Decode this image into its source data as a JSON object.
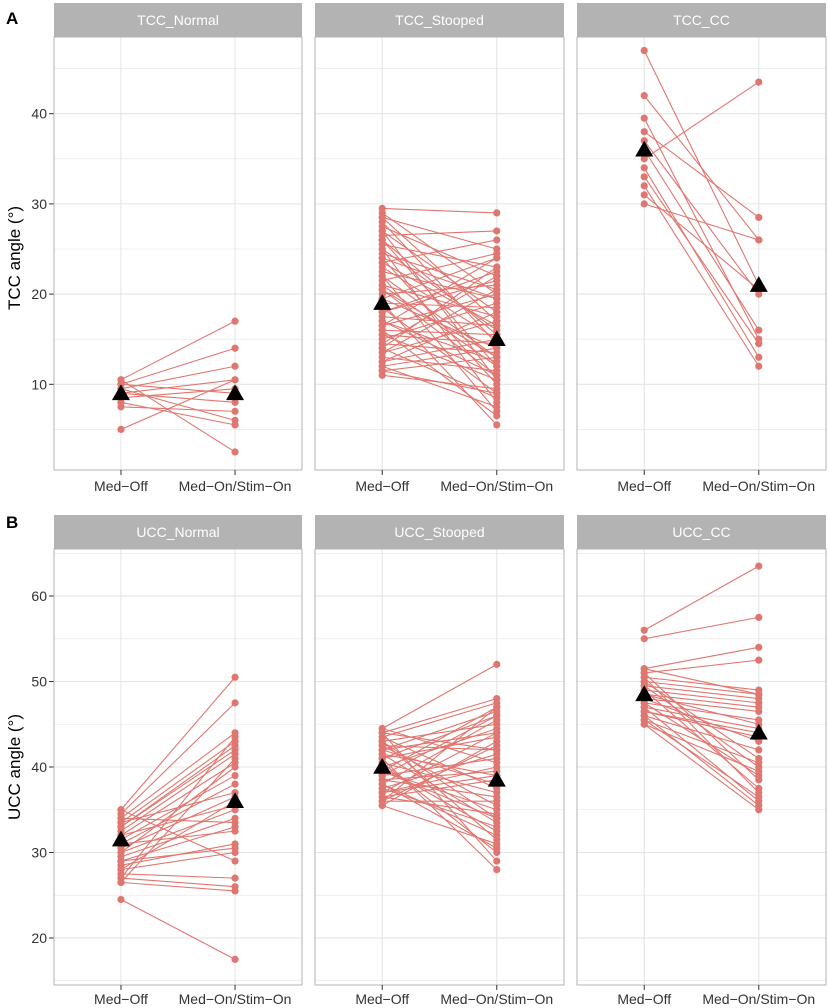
{
  "colors": {
    "series": "#E07670",
    "mean_marker": "#000000",
    "strip": "#B3B3B3",
    "grid": "#E5E5E5",
    "panel_border": "#B3B3B3"
  },
  "chart_data": [
    {
      "type": "line",
      "tag": "A",
      "ylabel": "TCC angle (°)",
      "ylim": [
        0.5,
        48.5
      ],
      "yticks": [
        10,
        20,
        30,
        40
      ],
      "categories": [
        "Med−Off",
        "Med−On/Stim−On"
      ],
      "mean_marker": "triangle",
      "panels": [
        {
          "strip": "TCC_Normal",
          "pairs": [
            [
              10.5,
              17
            ],
            [
              10,
              14
            ],
            [
              9.5,
              12
            ],
            [
              9,
              10.5
            ],
            [
              10,
              9
            ],
            [
              8.5,
              9.5
            ],
            [
              9,
              8
            ],
            [
              7.5,
              7
            ],
            [
              9.5,
              6
            ],
            [
              8,
              5.5
            ],
            [
              5,
              10.5
            ],
            [
              10.5,
              2.5
            ]
          ],
          "means": [
            9,
            9
          ]
        },
        {
          "strip": "TCC_Stooped",
          "pairs": [
            [
              29.5,
              29
            ],
            [
              29,
              20
            ],
            [
              28.5,
              25
            ],
            [
              28,
              14.5
            ],
            [
              27.5,
              22
            ],
            [
              27,
              18
            ],
            [
              26.5,
              27
            ],
            [
              26,
              12
            ],
            [
              25.5,
              23
            ],
            [
              25,
              16
            ],
            [
              24.5,
              20.5
            ],
            [
              24,
              10
            ],
            [
              23.5,
              26
            ],
            [
              23,
              15
            ],
            [
              22.5,
              19.5
            ],
            [
              22,
              13
            ],
            [
              21.5,
              24.5
            ],
            [
              21,
              17.5
            ],
            [
              20.5,
              11
            ],
            [
              20,
              21
            ],
            [
              19.5,
              14
            ],
            [
              19,
              18.5
            ],
            [
              18.5,
              9
            ],
            [
              18,
              22.5
            ],
            [
              17.5,
              16.5
            ],
            [
              17,
              12.5
            ],
            [
              16.5,
              20
            ],
            [
              16,
              15.5
            ],
            [
              15.5,
              10.5
            ],
            [
              15,
              19
            ],
            [
              14.5,
              13.5
            ],
            [
              14,
              8.5
            ],
            [
              13.5,
              17
            ],
            [
              13,
              11.5
            ],
            [
              12.5,
              15
            ],
            [
              12,
              7.5
            ],
            [
              11.5,
              13
            ],
            [
              11,
              9.5
            ],
            [
              22,
              7
            ],
            [
              19,
              5.5
            ],
            [
              16.5,
              24
            ],
            [
              14,
              23
            ],
            [
              25,
              8
            ],
            [
              20.5,
              13
            ],
            [
              18,
              21.5
            ],
            [
              15.5,
              14.5
            ],
            [
              12.5,
              18
            ],
            [
              27,
              10.5
            ],
            [
              23.5,
              16.5
            ],
            [
              17,
              11
            ],
            [
              13.5,
              20.5
            ],
            [
              11.5,
              9
            ],
            [
              21,
              12
            ],
            [
              26,
              15.5
            ],
            [
              24,
              19.5
            ],
            [
              19.5,
              24
            ],
            [
              14.5,
              22
            ],
            [
              16,
              6.5
            ],
            [
              28.5,
              17
            ],
            [
              12,
              14
            ]
          ],
          "means": [
            19,
            15
          ]
        },
        {
          "strip": "TCC_CC",
          "pairs": [
            [
              47,
              21
            ],
            [
              42,
              26
            ],
            [
              39.5,
              15
            ],
            [
              38,
              28.5
            ],
            [
              37,
              20
            ],
            [
              36,
              16
            ],
            [
              35,
              43.5
            ],
            [
              34,
              13
            ],
            [
              33,
              14.5
            ],
            [
              32,
              12
            ],
            [
              31,
              20.5
            ],
            [
              30,
              26
            ]
          ],
          "means": [
            36,
            21
          ]
        }
      ]
    },
    {
      "type": "line",
      "tag": "B",
      "ylabel": "UCC angle (°)",
      "ylim": [
        14.5,
        65.5
      ],
      "yticks": [
        20,
        30,
        40,
        50,
        60
      ],
      "categories": [
        "Med−Off",
        "Med−On/Stim−On"
      ],
      "mean_marker": "triangle",
      "panels": [
        {
          "strip": "UCC_Normal",
          "pairs": [
            [
              35,
              50.5
            ],
            [
              34.5,
              47.5
            ],
            [
              34,
              44
            ],
            [
              33.5,
              43
            ],
            [
              33,
              42.5
            ],
            [
              32.5,
              41.5
            ],
            [
              32,
              40.5
            ],
            [
              31.5,
              39
            ],
            [
              31,
              38
            ],
            [
              30.5,
              36.5
            ],
            [
              30,
              35
            ],
            [
              29.5,
              34
            ],
            [
              29,
              33
            ],
            [
              28.5,
              31
            ],
            [
              28,
              30
            ],
            [
              27.5,
              27
            ],
            [
              27,
              26
            ],
            [
              26.5,
              25.5
            ],
            [
              24.5,
              17.5
            ],
            [
              33,
              42
            ],
            [
              30,
              40
            ],
            [
              28,
              36
            ],
            [
              32,
              35.5
            ],
            [
              34,
              33.5
            ],
            [
              31,
              32.5
            ],
            [
              29,
              30.5
            ],
            [
              35,
              29
            ],
            [
              27,
              43.5
            ],
            [
              26.5,
              41
            ],
            [
              33.5,
              37
            ]
          ],
          "means": [
            31.5,
            36
          ]
        },
        {
          "strip": "UCC_Stooped",
          "pairs": [
            [
              44.5,
              52
            ],
            [
              44,
              48
            ],
            [
              43.5,
              47.5
            ],
            [
              43,
              45
            ],
            [
              42.5,
              42
            ],
            [
              42,
              46.5
            ],
            [
              41.5,
              39
            ],
            [
              41,
              43.5
            ],
            [
              40.5,
              37
            ],
            [
              40,
              44.5
            ],
            [
              39.5,
              35
            ],
            [
              39,
              41
            ],
            [
              38.5,
              36.5
            ],
            [
              38,
              45.5
            ],
            [
              37.5,
              33
            ],
            [
              37,
              40
            ],
            [
              36.5,
              34.5
            ],
            [
              36,
              42.5
            ],
            [
              35.5,
              31
            ],
            [
              44,
              29
            ],
            [
              41,
              28
            ],
            [
              38,
              32
            ],
            [
              42,
              38
            ],
            [
              39.5,
              47
            ],
            [
              37,
              44
            ],
            [
              43,
              34
            ],
            [
              40.5,
              30
            ],
            [
              36,
              36
            ],
            [
              44.5,
              40.5
            ],
            [
              35.5,
              43
            ],
            [
              41.5,
              33.5
            ],
            [
              38.5,
              39.5
            ],
            [
              42.5,
              35.5
            ],
            [
              39,
              46
            ],
            [
              37.5,
              41.5
            ],
            [
              43.5,
              37.5
            ],
            [
              36.5,
              38.5
            ],
            [
              40,
              32.5
            ],
            [
              44,
              42
            ],
            [
              38,
              30.5
            ],
            [
              41,
              46
            ],
            [
              36,
              47
            ],
            [
              42,
              44
            ],
            [
              39.5,
              34
            ],
            [
              37,
              39
            ],
            [
              43,
              31.5
            ]
          ],
          "means": [
            40,
            38.5
          ]
        },
        {
          "strip": "UCC_CC",
          "pairs": [
            [
              56,
              63.5
            ],
            [
              55,
              57.5
            ],
            [
              51.5,
              54
            ],
            [
              51,
              52.5
            ],
            [
              50.5,
              49
            ],
            [
              50,
              48.5
            ],
            [
              49.5,
              48
            ],
            [
              49,
              47.5
            ],
            [
              48.5,
              47
            ],
            [
              48,
              46.5
            ],
            [
              47.5,
              45.5
            ],
            [
              47,
              44.5
            ],
            [
              46.5,
              43.5
            ],
            [
              46,
              42
            ],
            [
              45.5,
              40.5
            ],
            [
              45,
              39.5
            ],
            [
              51,
              38.5
            ],
            [
              49,
              37.5
            ],
            [
              47,
              36
            ],
            [
              46,
              35.5
            ],
            [
              45,
              35
            ],
            [
              50,
              41
            ],
            [
              48,
              43
            ],
            [
              46.5,
              44
            ],
            [
              49.5,
              40
            ],
            [
              47.5,
              39
            ],
            [
              48.5,
              45
            ],
            [
              50.5,
              37
            ],
            [
              45.5,
              36.5
            ],
            [
              51.5,
              48.5
            ]
          ],
          "means": [
            48.5,
            44
          ]
        }
      ]
    }
  ]
}
